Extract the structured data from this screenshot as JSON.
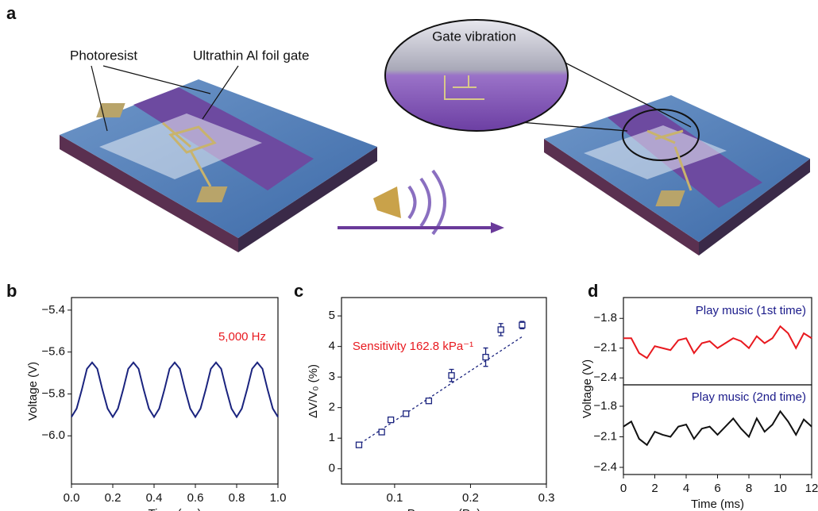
{
  "figure": {
    "panel_label": "a",
    "labels": [
      "Photoresist",
      "Ultrathin Al foil gate",
      "Gate vibration"
    ]
  },
  "chart_data": [
    {
      "type": "line",
      "panel_label": "b",
      "xlabel": "Time (ms)",
      "ylabel": "Voltage (V)",
      "annotation": "5,000 Hz",
      "color": "#1a237e",
      "x": [
        0,
        0.025,
        0.05,
        0.075,
        0.1,
        0.125,
        0.15,
        0.175,
        0.2,
        0.225,
        0.25,
        0.275,
        0.3,
        0.325,
        0.35,
        0.375,
        0.4,
        0.425,
        0.45,
        0.475,
        0.5,
        0.525,
        0.55,
        0.575,
        0.6,
        0.625,
        0.65,
        0.675,
        0.7,
        0.725,
        0.75,
        0.775,
        0.8,
        0.825,
        0.85,
        0.875,
        0.9,
        0.925,
        0.95,
        0.975,
        1.0
      ],
      "values": [
        -5.91,
        -5.87,
        -5.78,
        -5.68,
        -5.65,
        -5.68,
        -5.78,
        -5.87,
        -5.91,
        -5.87,
        -5.78,
        -5.68,
        -5.65,
        -5.68,
        -5.78,
        -5.87,
        -5.91,
        -5.87,
        -5.78,
        -5.68,
        -5.65,
        -5.68,
        -5.78,
        -5.87,
        -5.91,
        -5.87,
        -5.78,
        -5.68,
        -5.65,
        -5.68,
        -5.78,
        -5.87,
        -5.91,
        -5.87,
        -5.78,
        -5.68,
        -5.65,
        -5.68,
        -5.78,
        -5.87,
        -5.91
      ],
      "xlim": [
        0,
        1.0
      ],
      "ylim": [
        -6.23,
        -5.34
      ],
      "xticks": [
        {
          "value": 0,
          "label": "0.0"
        },
        0.2,
        0.4,
        0.6,
        0.8,
        {
          "value": 1,
          "label": "1.0"
        }
      ],
      "yticks": [
        {
          "value": -6.0,
          "label": "−6.0"
        },
        {
          "value": -5.8,
          "label": "−5.8"
        },
        {
          "value": -5.6,
          "label": "−5.6"
        },
        {
          "value": -5.4,
          "label": "−5.4"
        }
      ]
    },
    {
      "type": "scatter",
      "panel_label": "c",
      "xlabel": "Pressure (Pa)",
      "ylabel": "ΔV/V₀ (%)",
      "annotation": "Sensitivity 162.8 kPa⁻¹",
      "color": "#1a237e",
      "x": [
        0.053,
        0.083,
        0.095,
        0.115,
        0.145,
        0.175,
        0.22,
        0.24,
        0.268
      ],
      "values": [
        0.78,
        1.2,
        1.6,
        1.8,
        2.22,
        3.05,
        3.65,
        4.55,
        4.7
      ],
      "errors": [
        0.05,
        0.06,
        0.07,
        0.06,
        0.07,
        0.2,
        0.3,
        0.2,
        0.12
      ],
      "fit": {
        "x": [
          0.05,
          0.27
        ],
        "values": [
          0.75,
          4.35
        ]
      },
      "xlim": [
        0.03,
        0.3
      ],
      "ylim": [
        -0.5,
        5.6
      ],
      "xticks": [
        0.1,
        0.2,
        0.3
      ],
      "yticks": [
        0,
        1,
        2,
        3,
        4,
        5
      ]
    },
    {
      "type": "line",
      "panel_label": "d",
      "ylabel": "Voltage (V)",
      "annotation": "Play music (1st time)",
      "color": "#e8191f",
      "x": [
        0,
        0.5,
        1,
        1.5,
        2,
        2.5,
        3,
        3.5,
        4,
        4.5,
        5,
        5.5,
        6,
        6.5,
        7,
        7.5,
        8,
        8.5,
        9,
        9.5,
        10,
        10.5,
        11,
        11.5,
        12
      ],
      "values": [
        -2.0,
        -2.0,
        -2.15,
        -2.2,
        -2.08,
        -2.1,
        -2.12,
        -2.02,
        -2.0,
        -2.15,
        -2.05,
        -2.03,
        -2.1,
        -2.05,
        -2.0,
        -2.03,
        -2.1,
        -1.98,
        -2.05,
        -2.0,
        -1.88,
        -1.95,
        -2.1,
        -1.95,
        -2.0
      ],
      "xlim": [
        0,
        12
      ],
      "ylim": [
        -2.47,
        -1.59
      ],
      "yticks": [
        {
          "value": -2.4,
          "label": "−2.4"
        },
        {
          "value": -2.1,
          "label": "−2.1"
        },
        {
          "value": -1.8,
          "label": "−1.8"
        }
      ]
    },
    {
      "type": "line",
      "annotation": "Play music (2nd time)",
      "xlabel": "Time (ms)",
      "color": "#111111",
      "x": [
        0,
        0.5,
        1,
        1.5,
        2,
        2.5,
        3,
        3.5,
        4,
        4.5,
        5,
        5.5,
        6,
        6.5,
        7,
        7.5,
        8,
        8.5,
        9,
        9.5,
        10,
        10.5,
        11,
        11.5,
        12
      ],
      "values": [
        -2.0,
        -1.95,
        -2.12,
        -2.18,
        -2.05,
        -2.08,
        -2.1,
        -2.0,
        -1.98,
        -2.12,
        -2.02,
        -2.0,
        -2.08,
        -2.0,
        -1.92,
        -2.02,
        -2.1,
        -1.92,
        -2.05,
        -1.98,
        -1.85,
        -1.95,
        -2.08,
        -1.93,
        -2.0
      ],
      "xlim": [
        0,
        12
      ],
      "ylim": [
        -2.47,
        -1.59
      ],
      "xticks": [
        0,
        2,
        4,
        6,
        8,
        10,
        12
      ],
      "yticks": [
        {
          "value": -2.4,
          "label": "−2.4"
        },
        {
          "value": -2.1,
          "label": "−2.1"
        },
        {
          "value": -1.8,
          "label": "−1.8"
        }
      ]
    }
  ]
}
